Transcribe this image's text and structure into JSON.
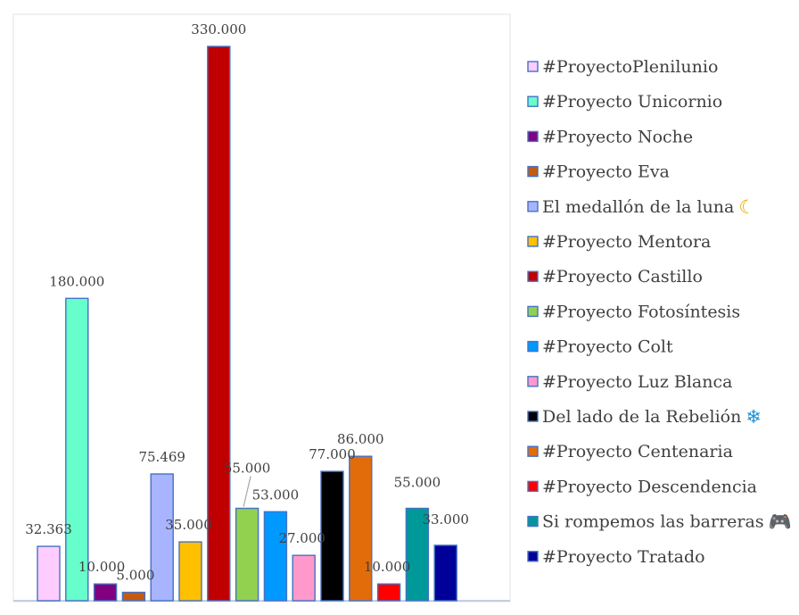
{
  "chart_data": {
    "type": "bar",
    "title": "",
    "xlabel": "",
    "ylabel": "",
    "ylim": [
      0,
      330000
    ],
    "grid": false,
    "legend_position": "right",
    "categories": [
      "#ProyectoPlenilunio",
      "#Proyecto Unicornio",
      "#Proyecto Noche",
      "#Proyecto Eva",
      "El medallón de la luna",
      "#Proyecto Mentora",
      "#Proyecto Castillo",
      "#Proyecto Fotosíntesis",
      "#Proyecto Colt",
      "#Proyecto Luz Blanca",
      "Del lado de la Rebelión",
      "#Proyecto Centenaria",
      "#Proyecto Descendencia",
      "Si rompemos las barreras",
      "#Proyecto Tratado"
    ],
    "values": [
      32363,
      180000,
      10000,
      5000,
      75469,
      35000,
      330000,
      55000,
      53000,
      27000,
      77000,
      86000,
      10000,
      55000,
      33000
    ],
    "data_labels": [
      "32.363",
      "180.000",
      "10.000",
      "5.000",
      "75.469",
      "35.000",
      "330.000",
      "55.000",
      "53.000",
      "27.000",
      "77.000",
      "86.000",
      "10.000",
      "55.000",
      "33.000"
    ],
    "colors": [
      "#ffccff",
      "#66ffcc",
      "#800080",
      "#c55a11",
      "#a9b4ff",
      "#ffc000",
      "#c00000",
      "#92d050",
      "#0099ff",
      "#ff99cc",
      "#000000",
      "#e36c0a",
      "#ff0000",
      "#009999",
      "#000099"
    ],
    "legend_icons": [
      "",
      "",
      "",
      "",
      "crescent-moon-icon",
      "",
      "",
      "",
      "",
      "",
      "snowflake-icon",
      "",
      "",
      "game-controller-icon",
      ""
    ]
  }
}
